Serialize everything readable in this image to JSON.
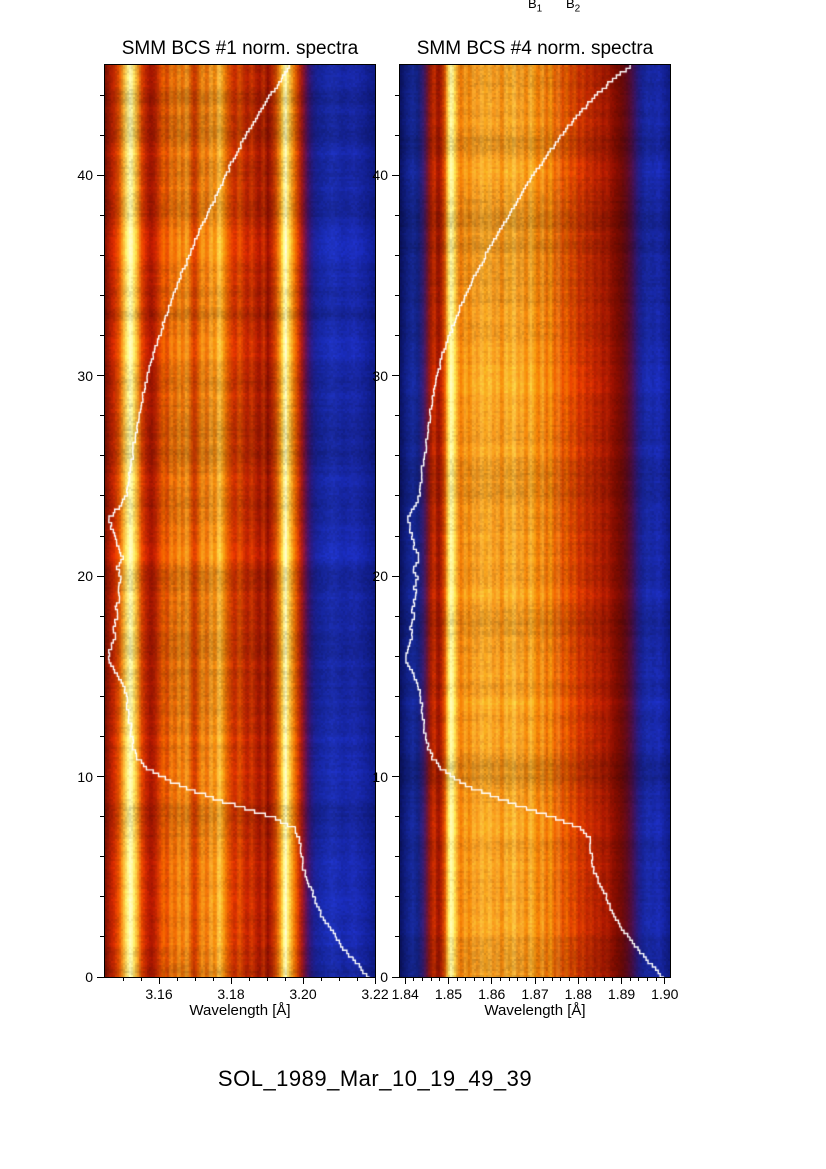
{
  "figure": {
    "caption": "SOL_1989_Mar_10_19_49_39",
    "background": "#ffffff",
    "curve_color": "#ffffff",
    "axis_color": "#000000"
  },
  "annotations": {
    "top_labels": [
      {
        "base": "B",
        "sub": "1"
      },
      {
        "base": "B",
        "sub": "2"
      }
    ]
  },
  "chart_data": [
    {
      "type": "heatmap",
      "title": "SMM BCS #1 norm. spectra",
      "xlabel": "Wavelength [Å]",
      "ylabel": "",
      "xlim": [
        3.145,
        3.22
      ],
      "ylim": [
        0,
        45.5
      ],
      "xticks": [
        "3.16",
        "3.18",
        "3.20",
        "3.22"
      ],
      "xtick_values": [
        3.16,
        3.18,
        3.2,
        3.22
      ],
      "x_minor_step": 0.005,
      "yticks": [
        "0",
        "10",
        "20",
        "30",
        "40"
      ],
      "ytick_values": [
        0,
        10,
        20,
        30,
        40
      ],
      "y_minor_step": 2,
      "grid": false,
      "legend": null,
      "colormap_stops": [
        [
          0.0,
          "#7d1200"
        ],
        [
          0.015,
          "#a81c00"
        ],
        [
          0.03,
          "#c62800"
        ],
        [
          0.05,
          "#e05200"
        ],
        [
          0.065,
          "#f5a428"
        ],
        [
          0.08,
          "#ffe878"
        ],
        [
          0.093,
          "#ffffc0"
        ],
        [
          0.105,
          "#ffe060"
        ],
        [
          0.118,
          "#f5a428"
        ],
        [
          0.133,
          "#dc4600"
        ],
        [
          0.15,
          "#c02400"
        ],
        [
          0.168,
          "#a01400"
        ],
        [
          0.185,
          "#b82200"
        ],
        [
          0.2,
          "#d44000"
        ],
        [
          0.215,
          "#e86400"
        ],
        [
          0.228,
          "#d44000"
        ],
        [
          0.242,
          "#ee8212"
        ],
        [
          0.258,
          "#dc5a00"
        ],
        [
          0.272,
          "#f0961e"
        ],
        [
          0.285,
          "#e06000"
        ],
        [
          0.3,
          "#f0a028"
        ],
        [
          0.315,
          "#dc5a00"
        ],
        [
          0.33,
          "#c83200"
        ],
        [
          0.345,
          "#e06400"
        ],
        [
          0.36,
          "#f0961e"
        ],
        [
          0.375,
          "#e06000"
        ],
        [
          0.39,
          "#f5aa32"
        ],
        [
          0.405,
          "#e87800"
        ],
        [
          0.42,
          "#ffc850"
        ],
        [
          0.435,
          "#f09614"
        ],
        [
          0.45,
          "#e06000"
        ],
        [
          0.465,
          "#d44000"
        ],
        [
          0.48,
          "#c62800"
        ],
        [
          0.495,
          "#dc5200"
        ],
        [
          0.51,
          "#c83200"
        ],
        [
          0.525,
          "#b41e00"
        ],
        [
          0.54,
          "#cc3800"
        ],
        [
          0.555,
          "#b42200"
        ],
        [
          0.57,
          "#a01400"
        ],
        [
          0.585,
          "#c03000"
        ],
        [
          0.6,
          "#8f0e00"
        ],
        [
          0.615,
          "#b02400"
        ],
        [
          0.63,
          "#cc4600"
        ],
        [
          0.645,
          "#ec8c14"
        ],
        [
          0.656,
          "#ffd850"
        ],
        [
          0.666,
          "#ffffc8"
        ],
        [
          0.676,
          "#ffe060"
        ],
        [
          0.688,
          "#f5a428"
        ],
        [
          0.7,
          "#e87000"
        ],
        [
          0.712,
          "#d04000"
        ],
        [
          0.724,
          "#a81c10"
        ],
        [
          0.736,
          "#7a1238"
        ],
        [
          0.748,
          "#4a1260"
        ],
        [
          0.76,
          "#2a1878"
        ],
        [
          0.775,
          "#1a2090"
        ],
        [
          0.8,
          "#1626a0"
        ],
        [
          0.84,
          "#1c2eb0"
        ],
        [
          0.88,
          "#1626a4"
        ],
        [
          0.92,
          "#1a2aac"
        ],
        [
          0.96,
          "#14229a"
        ],
        [
          1.0,
          "#0e1a84"
        ]
      ],
      "overlay_curve": {
        "description": "flare light curve, time (y) vs normalized flux (x fraction of panel)",
        "color": "#ffffff",
        "points_time_vs_fraction": [
          [
            0,
            0.975
          ],
          [
            0.5,
            0.95
          ],
          [
            1,
            0.915
          ],
          [
            1.5,
            0.885
          ],
          [
            2,
            0.86
          ],
          [
            2.5,
            0.835
          ],
          [
            3,
            0.81
          ],
          [
            3.5,
            0.79
          ],
          [
            4,
            0.775
          ],
          [
            4.5,
            0.765
          ],
          [
            5,
            0.745
          ],
          [
            5.5,
            0.735
          ],
          [
            6,
            0.73
          ],
          [
            6.5,
            0.725
          ],
          [
            7,
            0.72
          ],
          [
            7.5,
            0.7
          ],
          [
            8,
            0.63
          ],
          [
            8.5,
            0.52
          ],
          [
            9,
            0.4
          ],
          [
            9.5,
            0.3
          ],
          [
            10,
            0.22
          ],
          [
            10.5,
            0.155
          ],
          [
            11,
            0.12
          ],
          [
            11.5,
            0.105
          ],
          [
            12,
            0.1
          ],
          [
            12.5,
            0.095
          ],
          [
            13,
            0.09
          ],
          [
            13.5,
            0.085
          ],
          [
            14,
            0.08
          ],
          [
            14.5,
            0.075
          ],
          [
            15,
            0.055
          ],
          [
            15.5,
            0.03
          ],
          [
            16,
            0.012
          ],
          [
            16.5,
            0.02
          ],
          [
            17,
            0.035
          ],
          [
            17.5,
            0.03
          ],
          [
            18,
            0.045
          ],
          [
            18.5,
            0.04
          ],
          [
            19,
            0.055
          ],
          [
            19.5,
            0.05
          ],
          [
            20,
            0.06
          ],
          [
            20.5,
            0.045
          ],
          [
            21,
            0.065
          ],
          [
            21.5,
            0.05
          ],
          [
            22,
            0.04
          ],
          [
            22.5,
            0.025
          ],
          [
            23,
            0.015
          ],
          [
            23.5,
            0.05
          ],
          [
            24,
            0.075
          ],
          [
            24.5,
            0.085
          ],
          [
            25,
            0.09
          ],
          [
            26,
            0.1
          ],
          [
            27,
            0.11
          ],
          [
            28,
            0.125
          ],
          [
            29,
            0.14
          ],
          [
            30,
            0.155
          ],
          [
            31,
            0.175
          ],
          [
            32,
            0.2
          ],
          [
            33,
            0.225
          ],
          [
            34,
            0.25
          ],
          [
            35,
            0.28
          ],
          [
            36,
            0.31
          ],
          [
            37,
            0.34
          ],
          [
            38,
            0.375
          ],
          [
            39,
            0.41
          ],
          [
            40,
            0.445
          ],
          [
            41,
            0.48
          ],
          [
            42,
            0.52
          ],
          [
            43,
            0.565
          ],
          [
            44,
            0.61
          ],
          [
            45,
            0.66
          ],
          [
            45.5,
            0.685
          ]
        ]
      }
    },
    {
      "type": "heatmap",
      "title": "SMM BCS #4 norm. spectra",
      "xlabel": "Wavelength [Å]",
      "ylabel": "",
      "xlim": [
        1.8388,
        1.9012
      ],
      "ylim": [
        0,
        45.5
      ],
      "xticks": [
        "1.84",
        "1.85",
        "1.86",
        "1.87",
        "1.88",
        "1.89",
        "1.90"
      ],
      "xtick_values": [
        1.84,
        1.85,
        1.86,
        1.87,
        1.88,
        1.89,
        1.9
      ],
      "x_minor_step": 0.002,
      "yticks": [
        "0",
        "10",
        "20",
        "30",
        "40"
      ],
      "ytick_values": [
        0,
        10,
        20,
        30,
        40
      ],
      "y_minor_step": 2,
      "grid": false,
      "legend": null,
      "colormap_stops": [
        [
          0.0,
          "#0a1260"
        ],
        [
          0.02,
          "#101e7e"
        ],
        [
          0.045,
          "#162894"
        ],
        [
          0.065,
          "#12207e"
        ],
        [
          0.085,
          "#3a1a6a"
        ],
        [
          0.1,
          "#6e1430"
        ],
        [
          0.112,
          "#a01c00"
        ],
        [
          0.125,
          "#c63000"
        ],
        [
          0.138,
          "#8e1000"
        ],
        [
          0.152,
          "#b02400"
        ],
        [
          0.165,
          "#dc5a00"
        ],
        [
          0.176,
          "#ffd850"
        ],
        [
          0.188,
          "#ffffb8"
        ],
        [
          0.2,
          "#ffd850"
        ],
        [
          0.212,
          "#f0961e"
        ],
        [
          0.225,
          "#e87000"
        ],
        [
          0.24,
          "#f5a428"
        ],
        [
          0.255,
          "#e87800"
        ],
        [
          0.27,
          "#f5aa32"
        ],
        [
          0.285,
          "#ee8c14"
        ],
        [
          0.3,
          "#f8b43c"
        ],
        [
          0.315,
          "#ee9614"
        ],
        [
          0.33,
          "#f8b43c"
        ],
        [
          0.345,
          "#ee8c14"
        ],
        [
          0.36,
          "#f5aa32"
        ],
        [
          0.375,
          "#e87800"
        ],
        [
          0.39,
          "#f5b43c"
        ],
        [
          0.405,
          "#ee9614"
        ],
        [
          0.42,
          "#f8be46"
        ],
        [
          0.435,
          "#ee8c14"
        ],
        [
          0.45,
          "#f5aa32"
        ],
        [
          0.465,
          "#e87800"
        ],
        [
          0.48,
          "#f5b43c"
        ],
        [
          0.495,
          "#ee9614"
        ],
        [
          0.51,
          "#e87000"
        ],
        [
          0.525,
          "#f0a028"
        ],
        [
          0.54,
          "#e06400"
        ],
        [
          0.555,
          "#ee9614"
        ],
        [
          0.57,
          "#dc5a00"
        ],
        [
          0.585,
          "#e87818"
        ],
        [
          0.6,
          "#d44600"
        ],
        [
          0.615,
          "#e06400"
        ],
        [
          0.63,
          "#cc3800"
        ],
        [
          0.645,
          "#d85000"
        ],
        [
          0.66,
          "#c02800"
        ],
        [
          0.675,
          "#cc3c00"
        ],
        [
          0.69,
          "#b42200"
        ],
        [
          0.705,
          "#c03000"
        ],
        [
          0.72,
          "#a81c00"
        ],
        [
          0.735,
          "#b42600"
        ],
        [
          0.75,
          "#9a1400"
        ],
        [
          0.765,
          "#a81e00"
        ],
        [
          0.78,
          "#8e1000"
        ],
        [
          0.8,
          "#7c0c00"
        ],
        [
          0.82,
          "#6a0a08"
        ],
        [
          0.84,
          "#5a0a20"
        ],
        [
          0.86,
          "#42104e"
        ],
        [
          0.878,
          "#261a7a"
        ],
        [
          0.895,
          "#162292"
        ],
        [
          0.915,
          "#1a2aa4"
        ],
        [
          0.935,
          "#1626a0"
        ],
        [
          0.955,
          "#1a2aac"
        ],
        [
          0.975,
          "#142298"
        ],
        [
          1.0,
          "#0e1a80"
        ]
      ],
      "overlay_curve": {
        "description": "flare light curve, time (y) vs normalized flux (x fraction of panel)",
        "color": "#ffffff",
        "points_time_vs_fraction": [
          [
            0,
            0.975
          ],
          [
            0.5,
            0.945
          ],
          [
            1,
            0.91
          ],
          [
            1.5,
            0.88
          ],
          [
            2,
            0.85
          ],
          [
            2.5,
            0.825
          ],
          [
            3,
            0.8
          ],
          [
            3.5,
            0.78
          ],
          [
            4,
            0.765
          ],
          [
            4.5,
            0.75
          ],
          [
            5,
            0.73
          ],
          [
            5.5,
            0.715
          ],
          [
            6,
            0.71
          ],
          [
            6.5,
            0.705
          ],
          [
            7,
            0.7
          ],
          [
            7.5,
            0.67
          ],
          [
            8,
            0.58
          ],
          [
            8.5,
            0.47
          ],
          [
            9,
            0.36
          ],
          [
            9.5,
            0.27
          ],
          [
            10,
            0.2
          ],
          [
            10.5,
            0.15
          ],
          [
            11,
            0.12
          ],
          [
            11.5,
            0.105
          ],
          [
            12,
            0.095
          ],
          [
            12.5,
            0.09
          ],
          [
            13,
            0.085
          ],
          [
            13.5,
            0.08
          ],
          [
            14,
            0.075
          ],
          [
            14.5,
            0.07
          ],
          [
            15,
            0.055
          ],
          [
            15.5,
            0.035
          ],
          [
            16,
            0.02
          ],
          [
            16.5,
            0.03
          ],
          [
            17,
            0.045
          ],
          [
            17.5,
            0.04
          ],
          [
            18,
            0.05
          ],
          [
            18.5,
            0.045
          ],
          [
            19,
            0.06
          ],
          [
            19.5,
            0.055
          ],
          [
            20,
            0.065
          ],
          [
            20.5,
            0.05
          ],
          [
            21,
            0.07
          ],
          [
            21.5,
            0.055
          ],
          [
            22,
            0.045
          ],
          [
            22.5,
            0.035
          ],
          [
            23,
            0.03
          ],
          [
            23.5,
            0.055
          ],
          [
            24,
            0.07
          ],
          [
            25,
            0.08
          ],
          [
            26,
            0.09
          ],
          [
            27,
            0.1
          ],
          [
            28,
            0.11
          ],
          [
            29,
            0.12
          ],
          [
            30,
            0.135
          ],
          [
            31,
            0.155
          ],
          [
            32,
            0.18
          ],
          [
            33,
            0.21
          ],
          [
            34,
            0.24
          ],
          [
            35,
            0.275
          ],
          [
            36,
            0.315
          ],
          [
            37,
            0.355
          ],
          [
            38,
            0.4
          ],
          [
            39,
            0.445
          ],
          [
            40,
            0.49
          ],
          [
            41,
            0.54
          ],
          [
            42,
            0.595
          ],
          [
            43,
            0.655
          ],
          [
            44,
            0.72
          ],
          [
            45,
            0.8
          ],
          [
            45.5,
            0.85
          ]
        ]
      }
    }
  ]
}
